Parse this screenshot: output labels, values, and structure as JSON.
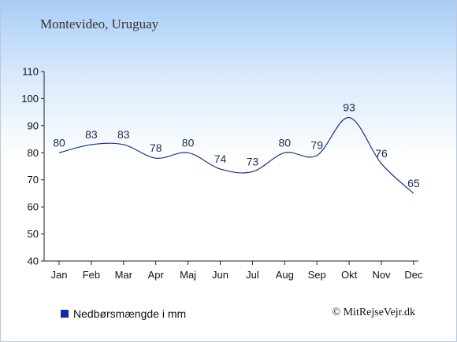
{
  "title": "Montevideo, Uruguay",
  "legend": {
    "label": "Nedbørsmængde i mm",
    "color": "#1628a6"
  },
  "copyright": "© MitRejseVejr.dk",
  "chart_data": {
    "type": "line",
    "title": "Montevideo, Uruguay",
    "xlabel": "",
    "ylabel": "",
    "categories": [
      "Jan",
      "Feb",
      "Mar",
      "Apr",
      "Maj",
      "Jun",
      "Jul",
      "Aug",
      "Sep",
      "Okt",
      "Nov",
      "Dec"
    ],
    "series": [
      {
        "name": "Nedbørsmængde i mm",
        "values": [
          80,
          83,
          83,
          78,
          80,
          74,
          73,
          80,
          79,
          93,
          76,
          65
        ],
        "color": "#1f2f8f"
      }
    ],
    "ylim": [
      40,
      110
    ],
    "yticks": [
      40,
      50,
      60,
      70,
      80,
      90,
      100,
      110
    ],
    "grid": false,
    "legend_position": "bottom-left"
  }
}
